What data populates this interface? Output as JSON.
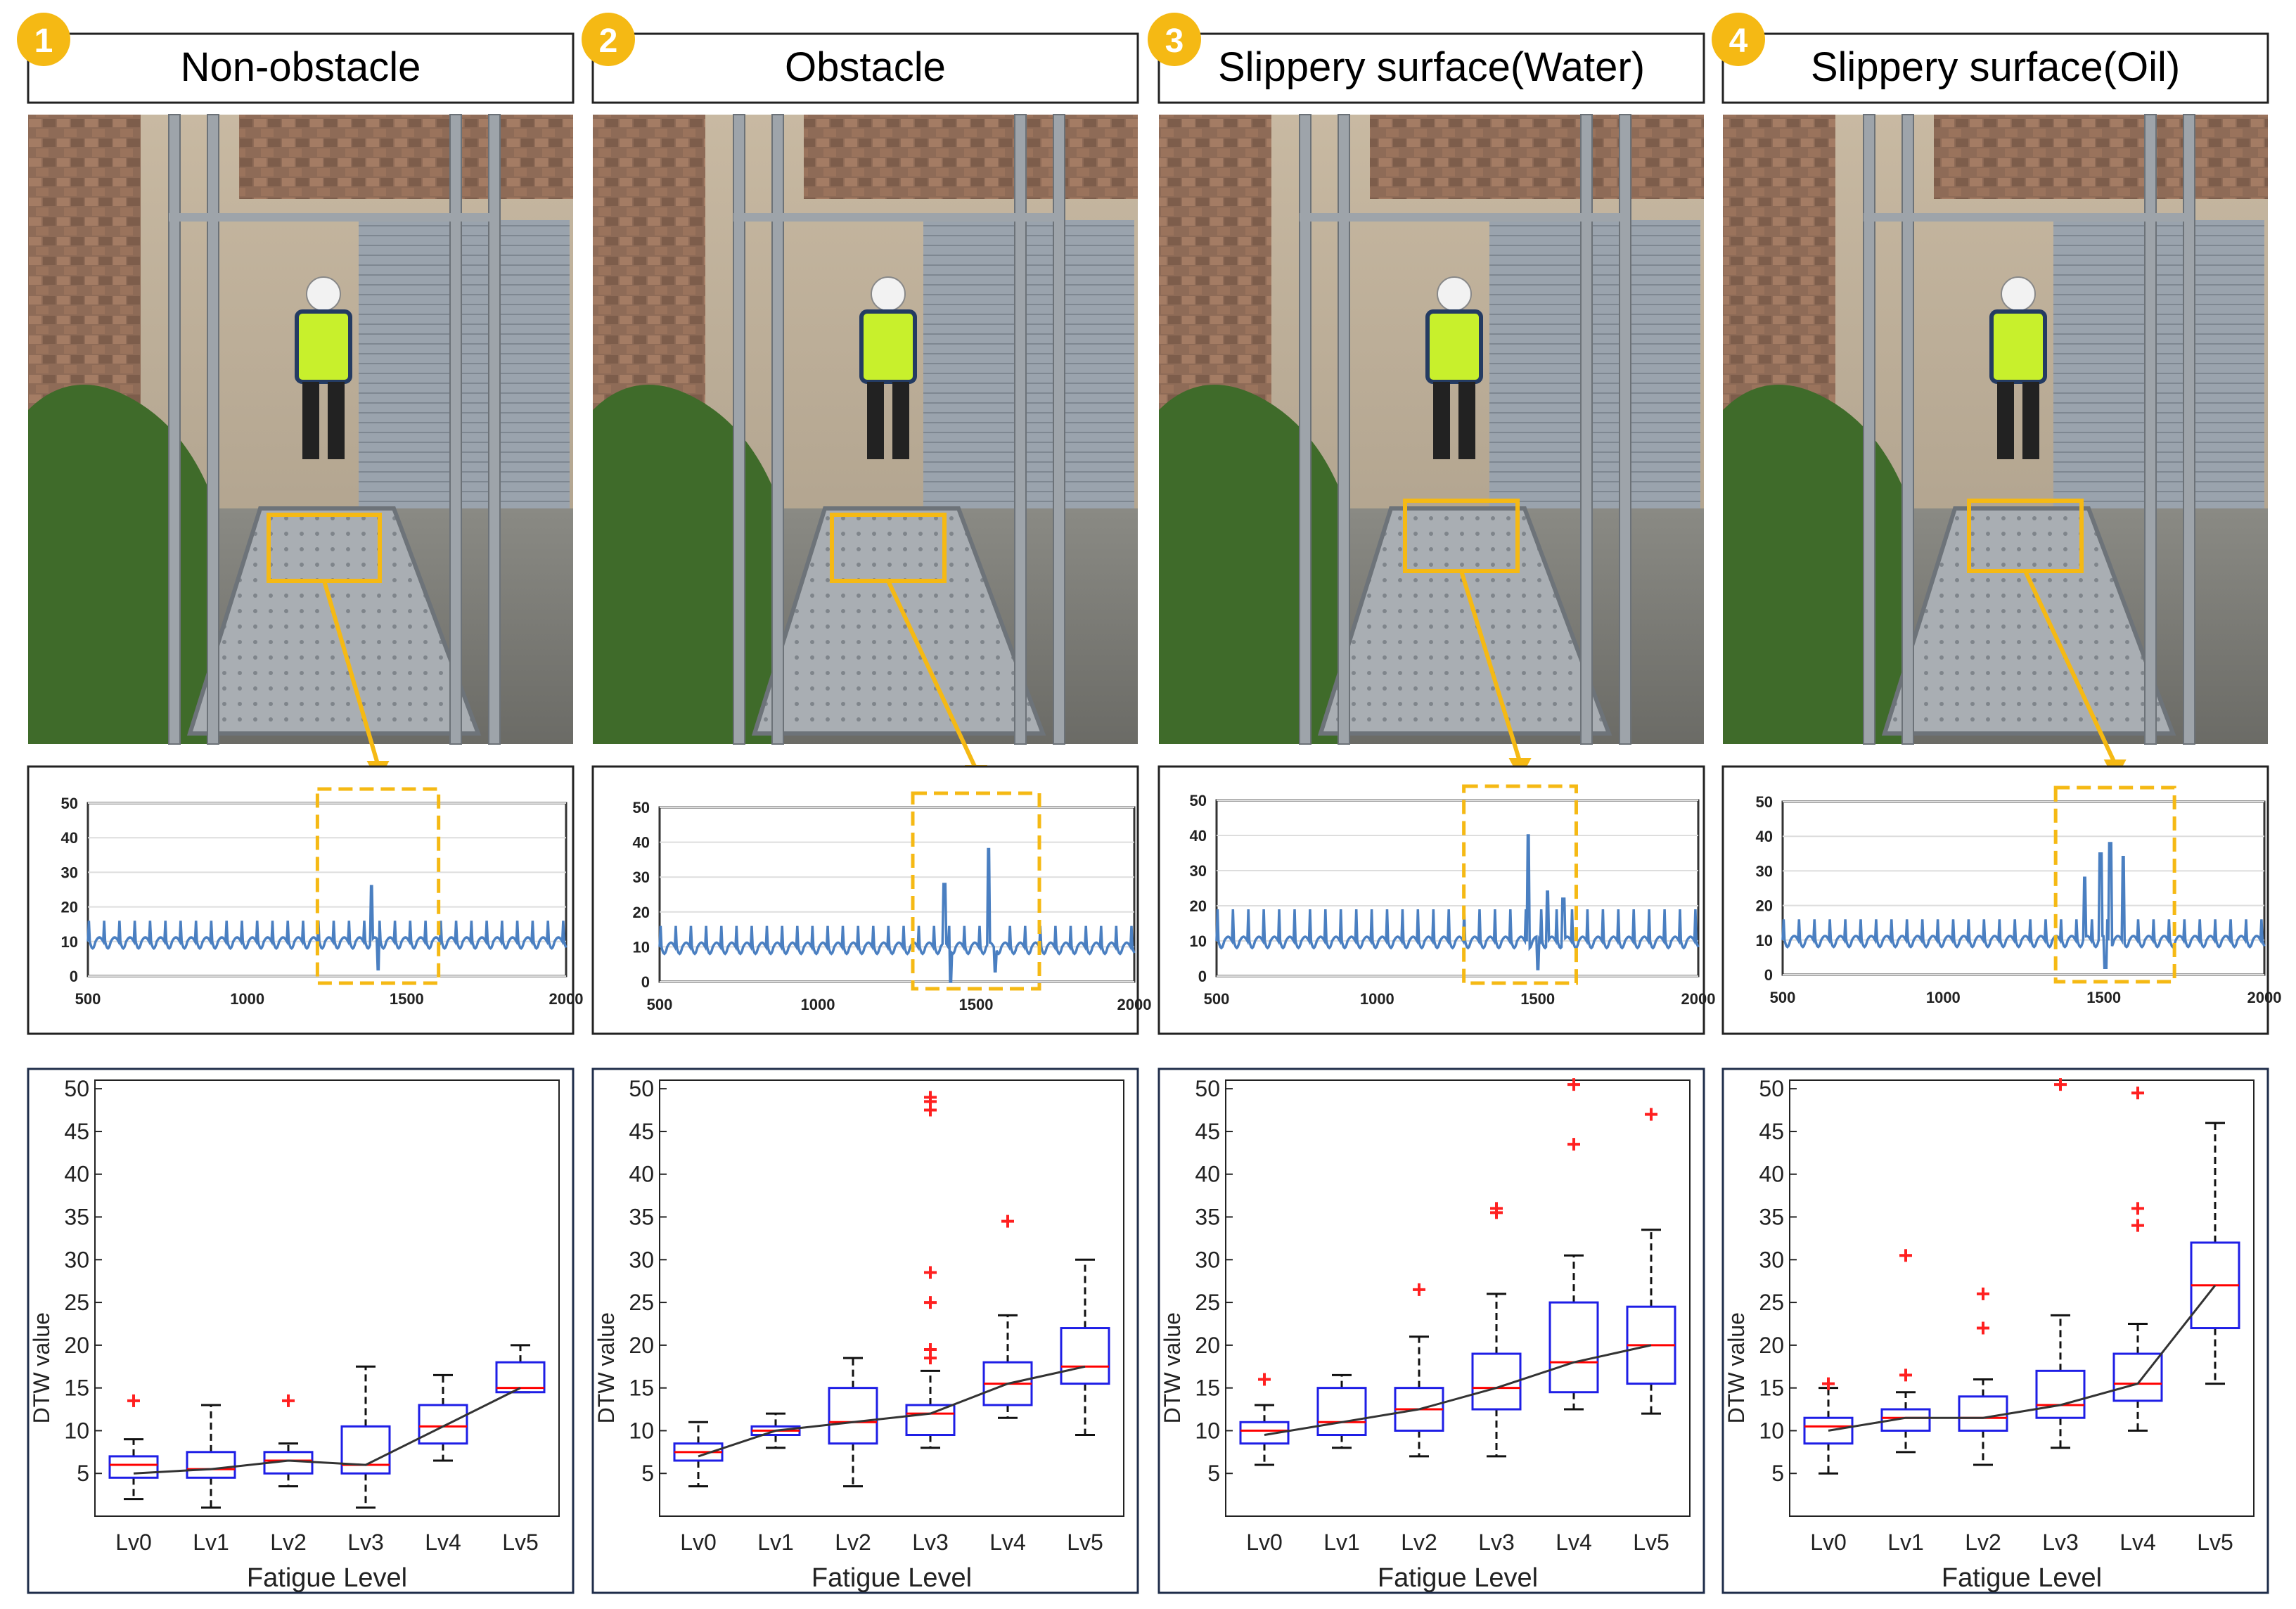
{
  "colors": {
    "badge": "#f5b914",
    "highlight": "#f5b914",
    "signal": "#4a7fc1",
    "box": "#1e1ee6",
    "median": "#ff0000",
    "outlier": "#ff2020",
    "trend": "#333333",
    "frame": "#1f2d4a"
  },
  "columns": [
    {
      "badge": "1",
      "title": "Non-obstacle"
    },
    {
      "badge": "2",
      "title": "Obstacle"
    },
    {
      "badge": "3",
      "title": "Slippery surface(Water)"
    },
    {
      "badge": "4",
      "title": "Slippery surface(Oil)"
    }
  ],
  "chart_data": [
    {
      "type": "line",
      "panel": "1",
      "x_range": [
        500,
        2000
      ],
      "y_range": [
        0,
        50
      ],
      "x_ticks": [
        500,
        1000,
        1500,
        2000
      ],
      "y_ticks": [
        0,
        10,
        20,
        30,
        40,
        50
      ],
      "baseline": 10,
      "amplitude": 6,
      "spikes": [
        {
          "x": 1390,
          "y": 26
        },
        {
          "x": 1410,
          "y": 2
        }
      ],
      "highlight_range": [
        1220,
        1600
      ]
    },
    {
      "type": "line",
      "panel": "2",
      "x_range": [
        500,
        2000
      ],
      "y_range": [
        0,
        50
      ],
      "x_ticks": [
        500,
        1000,
        1500,
        2000
      ],
      "y_ticks": [
        0,
        10,
        20,
        30,
        40,
        50
      ],
      "baseline": 10,
      "amplitude": 6,
      "spikes": [
        {
          "x": 1400,
          "y": 28
        },
        {
          "x": 1420,
          "y": 0
        },
        {
          "x": 1540,
          "y": 38
        },
        {
          "x": 1560,
          "y": 3
        }
      ],
      "highlight_range": [
        1300,
        1700
      ]
    },
    {
      "type": "line",
      "panel": "3",
      "x_range": [
        500,
        2000
      ],
      "y_range": [
        0,
        50
      ],
      "x_ticks": [
        500,
        1000,
        1500,
        2000
      ],
      "y_ticks": [
        0,
        10,
        20,
        30,
        40,
        50
      ],
      "baseline": 10,
      "amplitude": 9,
      "spikes": [
        {
          "x": 1470,
          "y": 40
        },
        {
          "x": 1500,
          "y": 2
        },
        {
          "x": 1530,
          "y": 24
        },
        {
          "x": 1580,
          "y": 22
        }
      ],
      "highlight_range": [
        1270,
        1620
      ]
    },
    {
      "type": "line",
      "panel": "4",
      "x_range": [
        500,
        2000
      ],
      "y_range": [
        0,
        50
      ],
      "x_ticks": [
        500,
        1000,
        1500,
        2000
      ],
      "y_ticks": [
        0,
        10,
        20,
        30,
        40,
        50
      ],
      "baseline": 10,
      "amplitude": 6,
      "spikes": [
        {
          "x": 1490,
          "y": 35
        },
        {
          "x": 1520,
          "y": 38
        },
        {
          "x": 1560,
          "y": 34
        },
        {
          "x": 1440,
          "y": 28
        },
        {
          "x": 1505,
          "y": 2
        }
      ],
      "highlight_range": [
        1350,
        1720
      ]
    },
    {
      "type": "box",
      "panel": "1",
      "xlabel": "Fatigue Level",
      "ylabel": "DTW value",
      "categories": [
        "Lv0",
        "Lv1",
        "Lv2",
        "Lv3",
        "Lv4",
        "Lv5"
      ],
      "y_ticks": [
        5,
        10,
        15,
        20,
        25,
        30,
        35,
        40,
        45,
        50
      ],
      "ylim": [
        0,
        51
      ],
      "boxes": [
        {
          "wlo": 2,
          "q1": 4.5,
          "med": 6,
          "q3": 7,
          "whi": 9,
          "outliers": [
            13.5
          ]
        },
        {
          "wlo": 1,
          "q1": 4.5,
          "med": 5.5,
          "q3": 7.5,
          "whi": 13,
          "outliers": []
        },
        {
          "wlo": 3.5,
          "q1": 5,
          "med": 6.5,
          "q3": 7.5,
          "whi": 8.5,
          "outliers": [
            13.5
          ]
        },
        {
          "wlo": 1,
          "q1": 5,
          "med": 6,
          "q3": 10.5,
          "whi": 17.5,
          "outliers": []
        },
        {
          "wlo": 6.5,
          "q1": 8.5,
          "med": 10.5,
          "q3": 13,
          "whi": 16.5,
          "outliers": []
        },
        {
          "wlo": 14.5,
          "q1": 14.5,
          "med": 15,
          "q3": 18,
          "whi": 20,
          "outliers": []
        }
      ],
      "trend": [
        5,
        5.5,
        6.5,
        6,
        10.5,
        15
      ]
    },
    {
      "type": "box",
      "panel": "2",
      "xlabel": "Fatigue Level",
      "ylabel": "DTW value",
      "categories": [
        "Lv0",
        "Lv1",
        "Lv2",
        "Lv3",
        "Lv4",
        "Lv5"
      ],
      "y_ticks": [
        5,
        10,
        15,
        20,
        25,
        30,
        35,
        40,
        45,
        50
      ],
      "ylim": [
        0,
        51
      ],
      "boxes": [
        {
          "wlo": 3.5,
          "q1": 6.5,
          "med": 7.5,
          "q3": 8.5,
          "whi": 11,
          "outliers": []
        },
        {
          "wlo": 8,
          "q1": 9.5,
          "med": 10,
          "q3": 10.5,
          "whi": 12,
          "outliers": []
        },
        {
          "wlo": 3.5,
          "q1": 8.5,
          "med": 11,
          "q3": 15,
          "whi": 18.5,
          "outliers": []
        },
        {
          "wlo": 8,
          "q1": 9.5,
          "med": 12,
          "q3": 13,
          "whi": 17,
          "outliers": [
            18.5,
            19.5,
            25,
            28.5,
            47.5,
            48.5,
            49
          ]
        },
        {
          "wlo": 11.5,
          "q1": 13,
          "med": 15.5,
          "q3": 18,
          "whi": 23.5,
          "outliers": [
            34.5
          ]
        },
        {
          "wlo": 9.5,
          "q1": 15.5,
          "med": 17.5,
          "q3": 22,
          "whi": 30,
          "outliers": []
        }
      ],
      "trend": [
        7,
        10,
        11,
        12,
        15.5,
        17.5
      ]
    },
    {
      "type": "box",
      "panel": "3",
      "xlabel": "Fatigue Level",
      "ylabel": "DTW value",
      "categories": [
        "Lv0",
        "Lv1",
        "Lv2",
        "Lv3",
        "Lv4",
        "Lv5"
      ],
      "y_ticks": [
        5,
        10,
        15,
        20,
        25,
        30,
        35,
        40,
        45,
        50
      ],
      "ylim": [
        0,
        51
      ],
      "boxes": [
        {
          "wlo": 6,
          "q1": 8.5,
          "med": 10,
          "q3": 11,
          "whi": 13,
          "outliers": [
            16
          ]
        },
        {
          "wlo": 8,
          "q1": 9.5,
          "med": 11,
          "q3": 15,
          "whi": 16.5,
          "outliers": []
        },
        {
          "wlo": 7,
          "q1": 10,
          "med": 12.5,
          "q3": 15,
          "whi": 21,
          "outliers": [
            26.5
          ]
        },
        {
          "wlo": 7,
          "q1": 12.5,
          "med": 15,
          "q3": 19,
          "whi": 26,
          "outliers": [
            35.5,
            36
          ]
        },
        {
          "wlo": 12.5,
          "q1": 14.5,
          "med": 18,
          "q3": 25,
          "whi": 30.5,
          "outliers": [
            43.5,
            50.5
          ]
        },
        {
          "wlo": 12,
          "q1": 15.5,
          "med": 20,
          "q3": 24.5,
          "whi": 33.5,
          "outliers": [
            47
          ]
        }
      ],
      "trend": [
        9.5,
        11,
        12.5,
        15,
        18,
        20
      ]
    },
    {
      "type": "box",
      "panel": "4",
      "xlabel": "Fatigue Level",
      "ylabel": "DTW value",
      "categories": [
        "Lv0",
        "Lv1",
        "Lv2",
        "Lv3",
        "Lv4",
        "Lv5"
      ],
      "y_ticks": [
        5,
        10,
        15,
        20,
        25,
        30,
        35,
        40,
        45,
        50
      ],
      "ylim": [
        0,
        51
      ],
      "boxes": [
        {
          "wlo": 5,
          "q1": 8.5,
          "med": 10.5,
          "q3": 11.5,
          "whi": 15,
          "outliers": [
            15.5
          ]
        },
        {
          "wlo": 7.5,
          "q1": 10,
          "med": 11.5,
          "q3": 12.5,
          "whi": 14.5,
          "outliers": [
            16.5,
            30.5
          ]
        },
        {
          "wlo": 6,
          "q1": 10,
          "med": 11.5,
          "q3": 14,
          "whi": 16,
          "outliers": [
            22,
            26
          ]
        },
        {
          "wlo": 8,
          "q1": 11.5,
          "med": 13,
          "q3": 17,
          "whi": 23.5,
          "outliers": [
            50.5
          ]
        },
        {
          "wlo": 10,
          "q1": 13.5,
          "med": 15.5,
          "q3": 19,
          "whi": 22.5,
          "outliers": [
            34,
            36,
            49.5
          ]
        },
        {
          "wlo": 15.5,
          "q1": 22,
          "med": 27,
          "q3": 32,
          "whi": 46,
          "outliers": []
        }
      ],
      "trend": [
        10,
        11.5,
        11.5,
        13,
        15.5,
        27
      ]
    }
  ]
}
